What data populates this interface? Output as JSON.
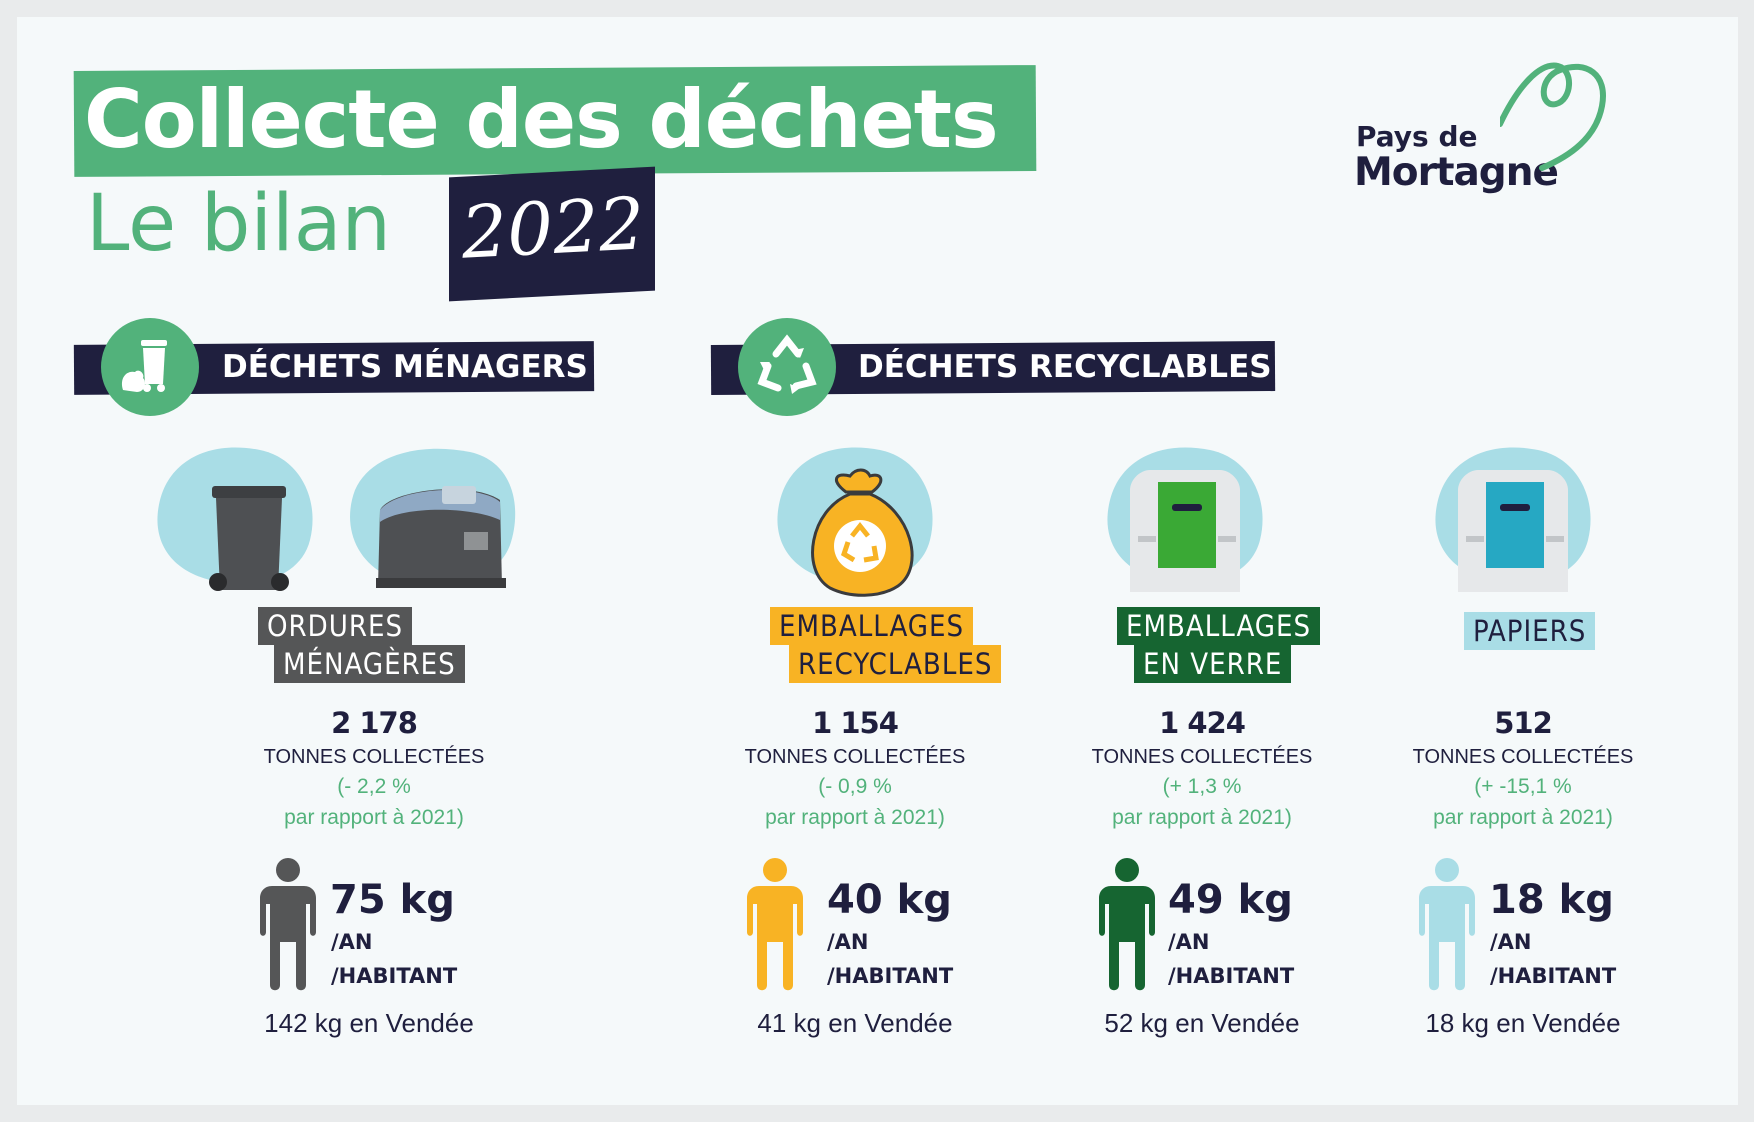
{
  "header": {
    "title": "Collecte des déchets",
    "subtitle": "Le bilan",
    "year": "2022"
  },
  "logo": {
    "line1": "Pays de",
    "line2": "Mortagne"
  },
  "sections": {
    "menagers": {
      "title": "DÉCHETS MÉNAGERS",
      "icon": "trash-bin-icon"
    },
    "recyclables": {
      "title": "DÉCHETS RECYCLABLES",
      "icon": "recycle-icon"
    }
  },
  "categories": [
    {
      "tag_lines": [
        "ORDURES",
        "MÉNAGÈRES"
      ],
      "tonnes": "2 178",
      "tonnes_label": "TONNES COLLECTÉES",
      "variation": "(- 2,2 %",
      "variation_ref": "par rapport à 2021)",
      "kg": "75 kg",
      "per_year": "/AN",
      "per_inhabitant": "/HABITANT",
      "vendee": "142 kg en Vendée",
      "color": "#555657"
    },
    {
      "tag_lines": [
        "EMBALLAGES",
        "RECYCLABLES"
      ],
      "tonnes": "1 154",
      "tonnes_label": "TONNES COLLECTÉES",
      "variation": "(- 0,9 %",
      "variation_ref": "par rapport à 2021)",
      "kg": "40 kg",
      "per_year": "/AN",
      "per_inhabitant": "/HABITANT",
      "vendee": "41 kg en Vendée",
      "color": "#f8b324"
    },
    {
      "tag_lines": [
        "EMBALLAGES",
        "EN VERRE"
      ],
      "tonnes": "1 424",
      "tonnes_label": "TONNES COLLECTÉES",
      "variation": "(+ 1,3 %",
      "variation_ref": "par rapport à 2021)",
      "kg": "49 kg",
      "per_year": "/AN",
      "per_inhabitant": "/HABITANT",
      "vendee": "52 kg en Vendée",
      "color": "#166531"
    },
    {
      "tag_lines": [
        "PAPIERS"
      ],
      "tonnes": "512",
      "tonnes_label": "TONNES COLLECTÉES",
      "variation": "(+ -15,1 %",
      "variation_ref": "par rapport à 2021)",
      "kg": "18 kg",
      "per_year": "/AN",
      "per_inhabitant": "/HABITANT",
      "vendee": "18 kg en Vendée",
      "color": "#a9dde6"
    }
  ],
  "colors": {
    "brand_green": "#52b27b",
    "navy": "#1f1f3e",
    "splash_blue": "#a9dde6"
  }
}
